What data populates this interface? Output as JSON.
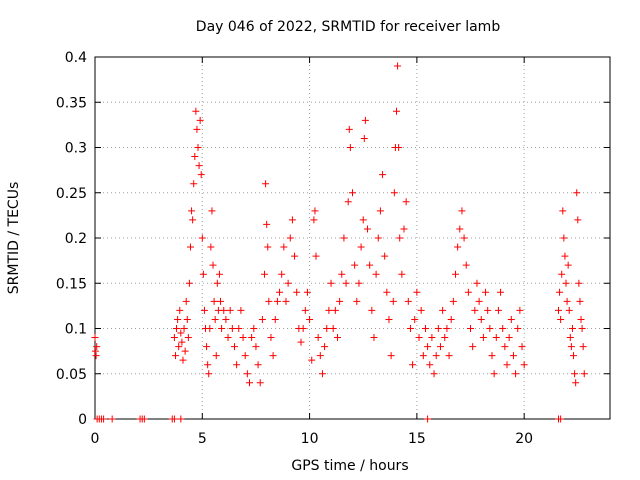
{
  "chart_data": {
    "type": "scatter",
    "title": "Day 046 of 2022, SRMTID for receiver lamb",
    "xlabel": "GPS time / hours",
    "ylabel": "SRMTID / TECUs",
    "xlim": [
      0,
      24
    ],
    "ylim": [
      0,
      0.4
    ],
    "xticks": [
      0,
      5,
      10,
      15,
      20
    ],
    "xtick_labels": [
      "0",
      "5",
      "10",
      "15",
      "20"
    ],
    "yticks": [
      0,
      0.05,
      0.1,
      0.15,
      0.2,
      0.25,
      0.3,
      0.35,
      0.4
    ],
    "ytick_labels": [
      "0",
      "0.05",
      "0.1",
      "0.15",
      "0.2",
      "0.25",
      "0.3",
      "0.35",
      "0.4"
    ],
    "grid": true,
    "marker": "+",
    "color": "#ff0000",
    "series": [
      {
        "name": "SRMTID",
        "points": [
          [
            0.0,
            0.09
          ],
          [
            0.02,
            0.075
          ],
          [
            0.05,
            0.07
          ],
          [
            0.08,
            0.08
          ],
          [
            0.1,
            0.0
          ],
          [
            0.2,
            0.0
          ],
          [
            0.3,
            0.0
          ],
          [
            0.4,
            0.0
          ],
          [
            0.8,
            0.0
          ],
          [
            2.1,
            0.0
          ],
          [
            2.2,
            0.0
          ],
          [
            2.3,
            0.0
          ],
          [
            3.6,
            0.0
          ],
          [
            3.7,
            0.0
          ],
          [
            4.0,
            0.0
          ],
          [
            15.5,
            0.0
          ],
          [
            21.6,
            0.0
          ],
          [
            21.7,
            0.0
          ],
          [
            3.7,
            0.09
          ],
          [
            3.75,
            0.07
          ],
          [
            3.8,
            0.1
          ],
          [
            3.85,
            0.11
          ],
          [
            3.9,
            0.08
          ],
          [
            3.95,
            0.12
          ],
          [
            4.0,
            0.095
          ],
          [
            4.05,
            0.085
          ],
          [
            4.1,
            0.065
          ],
          [
            4.15,
            0.1
          ],
          [
            4.2,
            0.075
          ],
          [
            4.25,
            0.13
          ],
          [
            4.3,
            0.11
          ],
          [
            4.35,
            0.09
          ],
          [
            4.4,
            0.15
          ],
          [
            4.45,
            0.19
          ],
          [
            4.5,
            0.23
          ],
          [
            4.55,
            0.22
          ],
          [
            4.6,
            0.26
          ],
          [
            4.65,
            0.29
          ],
          [
            4.7,
            0.34
          ],
          [
            4.75,
            0.32
          ],
          [
            4.8,
            0.3
          ],
          [
            4.85,
            0.28
          ],
          [
            4.9,
            0.33
          ],
          [
            4.95,
            0.27
          ],
          [
            5.0,
            0.2
          ],
          [
            5.05,
            0.16
          ],
          [
            5.1,
            0.12
          ],
          [
            5.15,
            0.1
          ],
          [
            5.2,
            0.08
          ],
          [
            5.25,
            0.06
          ],
          [
            5.3,
            0.05
          ],
          [
            5.35,
            0.1
          ],
          [
            5.4,
            0.19
          ],
          [
            5.45,
            0.23
          ],
          [
            5.5,
            0.17
          ],
          [
            5.55,
            0.13
          ],
          [
            5.6,
            0.11
          ],
          [
            5.65,
            0.07
          ],
          [
            5.7,
            0.15
          ],
          [
            5.75,
            0.12
          ],
          [
            5.8,
            0.16
          ],
          [
            5.85,
            0.13
          ],
          [
            5.9,
            0.1
          ],
          [
            6.0,
            0.12
          ],
          [
            6.1,
            0.11
          ],
          [
            6.2,
            0.09
          ],
          [
            6.3,
            0.12
          ],
          [
            6.4,
            0.1
          ],
          [
            6.5,
            0.08
          ],
          [
            6.6,
            0.06
          ],
          [
            6.7,
            0.1
          ],
          [
            6.8,
            0.12
          ],
          [
            6.9,
            0.09
          ],
          [
            7.0,
            0.07
          ],
          [
            7.1,
            0.05
          ],
          [
            7.2,
            0.04
          ],
          [
            7.3,
            0.09
          ],
          [
            7.4,
            0.1
          ],
          [
            7.5,
            0.08
          ],
          [
            7.6,
            0.06
          ],
          [
            7.7,
            0.04
          ],
          [
            7.8,
            0.11
          ],
          [
            7.9,
            0.16
          ],
          [
            7.95,
            0.26
          ],
          [
            8.0,
            0.215
          ],
          [
            8.05,
            0.19
          ],
          [
            8.1,
            0.13
          ],
          [
            8.2,
            0.09
          ],
          [
            8.3,
            0.07
          ],
          [
            8.4,
            0.11
          ],
          [
            8.5,
            0.13
          ],
          [
            8.6,
            0.14
          ],
          [
            8.7,
            0.16
          ],
          [
            8.8,
            0.19
          ],
          [
            8.9,
            0.13
          ],
          [
            9.0,
            0.15
          ],
          [
            9.1,
            0.2
          ],
          [
            9.2,
            0.22
          ],
          [
            9.3,
            0.18
          ],
          [
            9.4,
            0.14
          ],
          [
            9.5,
            0.1
          ],
          [
            9.6,
            0.085
          ],
          [
            9.7,
            0.1
          ],
          [
            9.8,
            0.12
          ],
          [
            9.9,
            0.14
          ],
          [
            10.0,
            0.11
          ],
          [
            10.1,
            0.065
          ],
          [
            10.2,
            0.22
          ],
          [
            10.25,
            0.23
          ],
          [
            10.3,
            0.18
          ],
          [
            10.4,
            0.09
          ],
          [
            10.5,
            0.07
          ],
          [
            10.6,
            0.05
          ],
          [
            10.7,
            0.08
          ],
          [
            10.8,
            0.1
          ],
          [
            10.9,
            0.12
          ],
          [
            11.0,
            0.15
          ],
          [
            11.1,
            0.1
          ],
          [
            11.2,
            0.12
          ],
          [
            11.3,
            0.09
          ],
          [
            11.4,
            0.13
          ],
          [
            11.5,
            0.16
          ],
          [
            11.6,
            0.2
          ],
          [
            11.7,
            0.15
          ],
          [
            11.8,
            0.24
          ],
          [
            11.85,
            0.32
          ],
          [
            11.9,
            0.3
          ],
          [
            12.0,
            0.25
          ],
          [
            12.1,
            0.17
          ],
          [
            12.2,
            0.13
          ],
          [
            12.3,
            0.15
          ],
          [
            12.4,
            0.19
          ],
          [
            12.5,
            0.22
          ],
          [
            12.55,
            0.31
          ],
          [
            12.6,
            0.33
          ],
          [
            12.7,
            0.21
          ],
          [
            12.8,
            0.17
          ],
          [
            12.9,
            0.12
          ],
          [
            13.0,
            0.09
          ],
          [
            13.1,
            0.16
          ],
          [
            13.2,
            0.2
          ],
          [
            13.3,
            0.23
          ],
          [
            13.4,
            0.27
          ],
          [
            13.5,
            0.18
          ],
          [
            13.6,
            0.14
          ],
          [
            13.7,
            0.11
          ],
          [
            13.8,
            0.07
          ],
          [
            13.9,
            0.13
          ],
          [
            13.95,
            0.25
          ],
          [
            14.0,
            0.3
          ],
          [
            14.05,
            0.34
          ],
          [
            14.1,
            0.39
          ],
          [
            14.15,
            0.3
          ],
          [
            14.2,
            0.2
          ],
          [
            14.3,
            0.16
          ],
          [
            14.4,
            0.21
          ],
          [
            14.5,
            0.24
          ],
          [
            14.6,
            0.13
          ],
          [
            14.7,
            0.1
          ],
          [
            14.8,
            0.06
          ],
          [
            14.9,
            0.11
          ],
          [
            15.0,
            0.14
          ],
          [
            15.1,
            0.09
          ],
          [
            15.2,
            0.12
          ],
          [
            15.3,
            0.07
          ],
          [
            15.4,
            0.1
          ],
          [
            15.5,
            0.08
          ],
          [
            15.6,
            0.06
          ],
          [
            15.7,
            0.09
          ],
          [
            15.8,
            0.05
          ],
          [
            15.9,
            0.07
          ],
          [
            16.0,
            0.1
          ],
          [
            16.1,
            0.08
          ],
          [
            16.2,
            0.12
          ],
          [
            16.3,
            0.09
          ],
          [
            16.4,
            0.1
          ],
          [
            16.5,
            0.07
          ],
          [
            16.6,
            0.11
          ],
          [
            16.7,
            0.13
          ],
          [
            16.8,
            0.16
          ],
          [
            16.9,
            0.19
          ],
          [
            17.0,
            0.21
          ],
          [
            17.1,
            0.23
          ],
          [
            17.2,
            0.2
          ],
          [
            17.3,
            0.17
          ],
          [
            17.4,
            0.14
          ],
          [
            17.5,
            0.1
          ],
          [
            17.6,
            0.08
          ],
          [
            17.7,
            0.12
          ],
          [
            17.8,
            0.15
          ],
          [
            17.9,
            0.13
          ],
          [
            18.0,
            0.11
          ],
          [
            18.1,
            0.09
          ],
          [
            18.2,
            0.14
          ],
          [
            18.3,
            0.12
          ],
          [
            18.4,
            0.1
          ],
          [
            18.5,
            0.07
          ],
          [
            18.6,
            0.05
          ],
          [
            18.7,
            0.09
          ],
          [
            18.8,
            0.12
          ],
          [
            18.9,
            0.14
          ],
          [
            19.0,
            0.1
          ],
          [
            19.1,
            0.08
          ],
          [
            19.2,
            0.06
          ],
          [
            19.3,
            0.09
          ],
          [
            19.4,
            0.11
          ],
          [
            19.5,
            0.07
          ],
          [
            19.6,
            0.05
          ],
          [
            19.7,
            0.1
          ],
          [
            19.8,
            0.12
          ],
          [
            19.9,
            0.08
          ],
          [
            20.0,
            0.06
          ],
          [
            21.6,
            0.12
          ],
          [
            21.65,
            0.14
          ],
          [
            21.7,
            0.11
          ],
          [
            21.75,
            0.16
          ],
          [
            21.8,
            0.23
          ],
          [
            21.85,
            0.2
          ],
          [
            21.9,
            0.18
          ],
          [
            21.95,
            0.15
          ],
          [
            22.0,
            0.13
          ],
          [
            22.05,
            0.17
          ],
          [
            22.1,
            0.12
          ],
          [
            22.15,
            0.09
          ],
          [
            22.2,
            0.08
          ],
          [
            22.25,
            0.1
          ],
          [
            22.3,
            0.07
          ],
          [
            22.35,
            0.05
          ],
          [
            22.4,
            0.04
          ],
          [
            22.45,
            0.25
          ],
          [
            22.5,
            0.22
          ],
          [
            22.55,
            0.15
          ],
          [
            22.6,
            0.13
          ],
          [
            22.65,
            0.11
          ],
          [
            22.7,
            0.1
          ],
          [
            22.75,
            0.08
          ],
          [
            22.8,
            0.05
          ]
        ]
      }
    ]
  }
}
